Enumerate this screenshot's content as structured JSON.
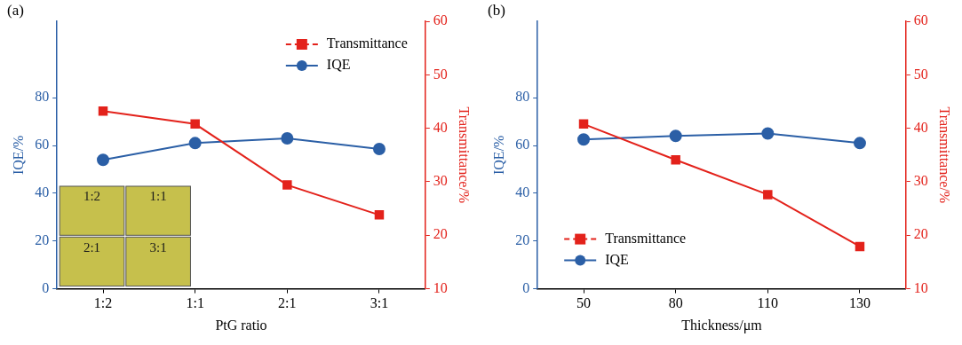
{
  "chart_data": [
    {
      "type": "line",
      "title": "(a)",
      "x_label": "PtG ratio",
      "y_label": "IQE/%",
      "y2_label": "Transmittance/%",
      "categories": [
        "1:2",
        "1:1",
        "2:1",
        "3:1"
      ],
      "series": [
        {
          "name": "Transmittance",
          "color": "#e3221b",
          "values": [
            43.2,
            40.8,
            29.4,
            23.8
          ],
          "axis": "y2",
          "marker": "square",
          "line_style": "solid"
        },
        {
          "name": "IQE",
          "color": "#2b5fa6",
          "values": [
            54,
            61,
            63,
            58.5
          ],
          "marker": "circle",
          "line_style": "solid"
        }
      ],
      "ylim": [
        0,
        112
      ],
      "yticks": [
        0,
        20,
        40,
        60,
        80
      ],
      "y2lim": [
        10,
        60
      ],
      "y2ticks": [
        10,
        20,
        30,
        40,
        50,
        60
      ],
      "grid": false,
      "legend": "upper right",
      "annotations": [
        "1:2",
        "1:1",
        "2:1",
        "3:1"
      ]
    },
    {
      "type": "line",
      "title": "(b)",
      "x_label": "Thickness/μm",
      "y_label": "IQE/%",
      "y2_label": "Transmittance/%",
      "categories": [
        "50",
        "80",
        "110",
        "130"
      ],
      "series": [
        {
          "name": "Transmittance",
          "color": "#e3221b",
          "values": [
            40.8,
            34.1,
            27.6,
            17.9
          ],
          "axis": "y2",
          "marker": "square",
          "line_style": "solid"
        },
        {
          "name": "IQE",
          "color": "#2b5fa6",
          "values": [
            62.5,
            64,
            65,
            61
          ],
          "marker": "circle",
          "line_style": "solid"
        }
      ],
      "ylim": [
        0,
        112
      ],
      "yticks": [
        0,
        20,
        40,
        60,
        80
      ],
      "y2lim": [
        10,
        60
      ],
      "y2ticks": [
        10,
        20,
        30,
        40,
        50,
        60
      ],
      "grid": false,
      "legend": "lower left"
    }
  ]
}
